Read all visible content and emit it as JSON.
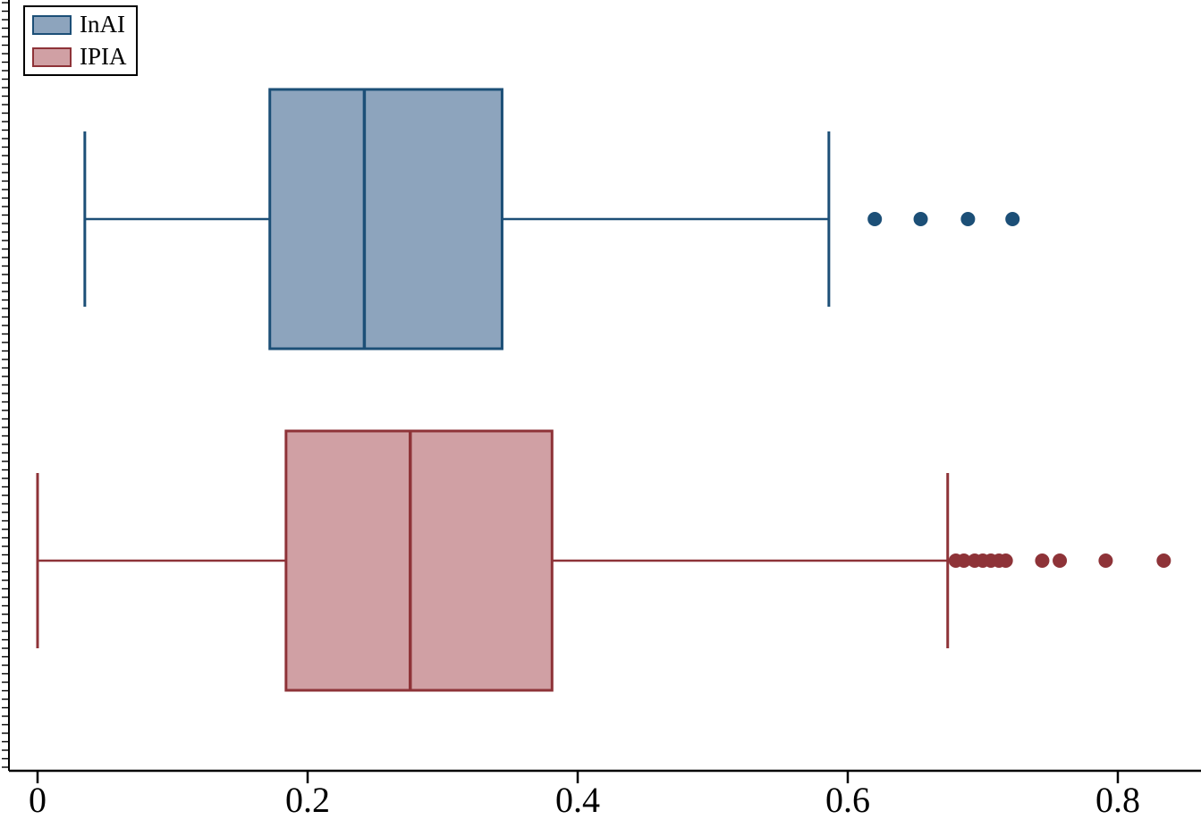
{
  "chart_data": {
    "type": "boxplot",
    "orientation": "horizontal",
    "title": "",
    "xlabel": "",
    "ylabel": "",
    "background": "#ffffff",
    "axis_color": "#000000",
    "x_axis": {
      "range": [
        0,
        0.862
      ],
      "ticks": [
        {
          "value": 0,
          "label": "0"
        },
        {
          "value": 0.2,
          "label": "0.2"
        },
        {
          "value": 0.4,
          "label": "0.4"
        },
        {
          "value": 0.6,
          "label": "0.6"
        },
        {
          "value": 0.8,
          "label": "0.8"
        }
      ]
    },
    "legend": {
      "position": "top-left",
      "items": [
        {
          "label": "InAI"
        },
        {
          "label": "IPIA"
        }
      ]
    },
    "series": [
      {
        "name": "InAI",
        "fill": "#8da4bd",
        "stroke": "#1c4f77",
        "stats": {
          "whisker_low": 0.035,
          "q1": 0.172,
          "median": 0.242,
          "q3": 0.344,
          "whisker_high": 0.586
        },
        "outliers": [
          0.62,
          0.654,
          0.689,
          0.722
        ]
      },
      {
        "name": "IPIA",
        "fill": "#d0a0a4",
        "stroke": "#8e3338",
        "stats": {
          "whisker_low": 0.0,
          "q1": 0.184,
          "median": 0.276,
          "q3": 0.381,
          "whisker_high": 0.674
        },
        "outliers": [
          0.68,
          0.686,
          0.694,
          0.7,
          0.706,
          0.712,
          0.717,
          0.744,
          0.757,
          0.791,
          0.834
        ]
      }
    ]
  }
}
